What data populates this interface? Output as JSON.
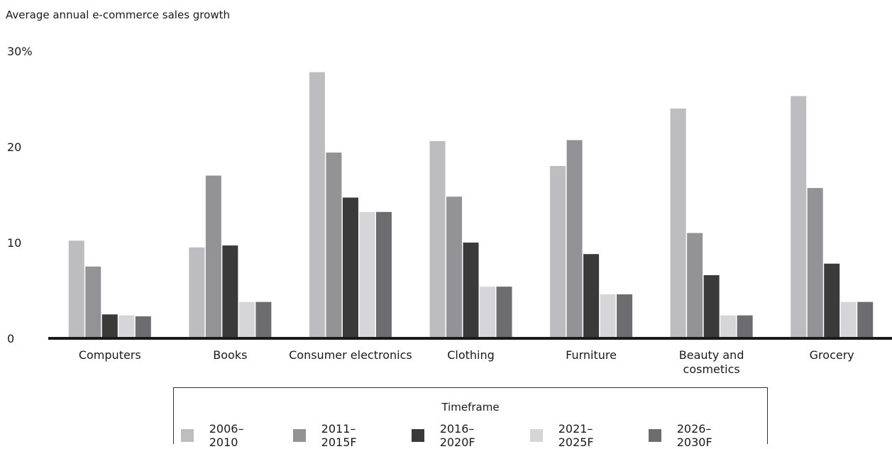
{
  "chart_data": {
    "type": "bar",
    "title": "Average annual e-commerce sales growth",
    "categories": [
      "Computers",
      "Books",
      "Consumer electronics",
      "Clothing",
      "Furniture",
      "Beauty and cosmetics",
      "Grocery"
    ],
    "category_lines": [
      [
        "Computers"
      ],
      [
        "Books"
      ],
      [
        "Consumer electronics"
      ],
      [
        "Clothing"
      ],
      [
        "Furniture"
      ],
      [
        "Beauty and",
        "cosmetics"
      ],
      [
        "Grocery"
      ]
    ],
    "series": [
      {
        "name": "2006–2010",
        "color": "#bdbdbf",
        "values": [
          10.2,
          9.5,
          27.8,
          20.6,
          18.0,
          24.0,
          25.3
        ]
      },
      {
        "name": "2011–2015F",
        "color": "#939395",
        "values": [
          7.5,
          17.0,
          19.4,
          14.8,
          20.7,
          11.0,
          15.7
        ]
      },
      {
        "name": "2016–2020F",
        "color": "#3a3a3a",
        "values": [
          2.5,
          9.7,
          14.7,
          10.0,
          8.8,
          6.6,
          7.8
        ]
      },
      {
        "name": "2021–2025F",
        "color": "#d6d6d8",
        "values": [
          2.4,
          3.8,
          13.2,
          5.4,
          4.6,
          2.4,
          3.8
        ]
      },
      {
        "name": "2026–2030F",
        "color": "#6d6d6f",
        "values": [
          2.3,
          3.8,
          13.2,
          5.4,
          4.6,
          2.4,
          3.8
        ]
      }
    ],
    "yticks": [
      {
        "value": 0,
        "label": "0"
      },
      {
        "value": 10,
        "label": "10"
      },
      {
        "value": 20,
        "label": "20"
      },
      {
        "value": 30,
        "label": "30%"
      }
    ],
    "ylim": [
      0,
      30
    ],
    "legend_title": "Timeframe",
    "legend_position": "bottom"
  }
}
